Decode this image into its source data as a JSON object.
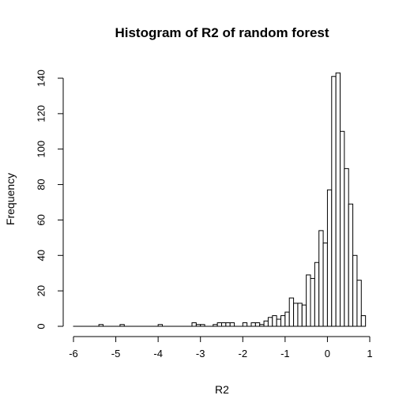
{
  "chart_data": {
    "type": "bar",
    "title": "Histogram of R2 of random forest",
    "xlabel": "R2",
    "ylabel": "Frequency",
    "bin_width": 0.1,
    "xlim": [
      -6,
      1
    ],
    "ylim": [
      0,
      145
    ],
    "x_ticks": [
      -6,
      -5,
      -4,
      -3,
      -2,
      -1,
      0,
      1
    ],
    "y_ticks": [
      0,
      20,
      40,
      60,
      80,
      100,
      120,
      140
    ],
    "bins": [
      {
        "start": -5.4,
        "count": 1
      },
      {
        "start": -4.9,
        "count": 1
      },
      {
        "start": -4.0,
        "count": 1
      },
      {
        "start": -3.2,
        "count": 2
      },
      {
        "start": -3.1,
        "count": 1
      },
      {
        "start": -3.0,
        "count": 1
      },
      {
        "start": -2.7,
        "count": 1
      },
      {
        "start": -2.6,
        "count": 2
      },
      {
        "start": -2.5,
        "count": 2
      },
      {
        "start": -2.4,
        "count": 2
      },
      {
        "start": -2.3,
        "count": 2
      },
      {
        "start": -2.0,
        "count": 2
      },
      {
        "start": -1.8,
        "count": 2
      },
      {
        "start": -1.7,
        "count": 2
      },
      {
        "start": -1.6,
        "count": 1
      },
      {
        "start": -1.5,
        "count": 3
      },
      {
        "start": -1.4,
        "count": 5
      },
      {
        "start": -1.3,
        "count": 6
      },
      {
        "start": -1.2,
        "count": 4
      },
      {
        "start": -1.1,
        "count": 6
      },
      {
        "start": -1.0,
        "count": 8
      },
      {
        "start": -0.9,
        "count": 16
      },
      {
        "start": -0.8,
        "count": 13
      },
      {
        "start": -0.7,
        "count": 13
      },
      {
        "start": -0.6,
        "count": 12
      },
      {
        "start": -0.5,
        "count": 29
      },
      {
        "start": -0.4,
        "count": 27
      },
      {
        "start": -0.3,
        "count": 36
      },
      {
        "start": -0.2,
        "count": 54
      },
      {
        "start": -0.1,
        "count": 47
      },
      {
        "start": 0.0,
        "count": 77
      },
      {
        "start": 0.1,
        "count": 141
      },
      {
        "start": 0.2,
        "count": 143
      },
      {
        "start": 0.3,
        "count": 110
      },
      {
        "start": 0.4,
        "count": 89
      },
      {
        "start": 0.5,
        "count": 69
      },
      {
        "start": 0.6,
        "count": 40
      },
      {
        "start": 0.7,
        "count": 26
      },
      {
        "start": 0.8,
        "count": 6
      }
    ]
  }
}
